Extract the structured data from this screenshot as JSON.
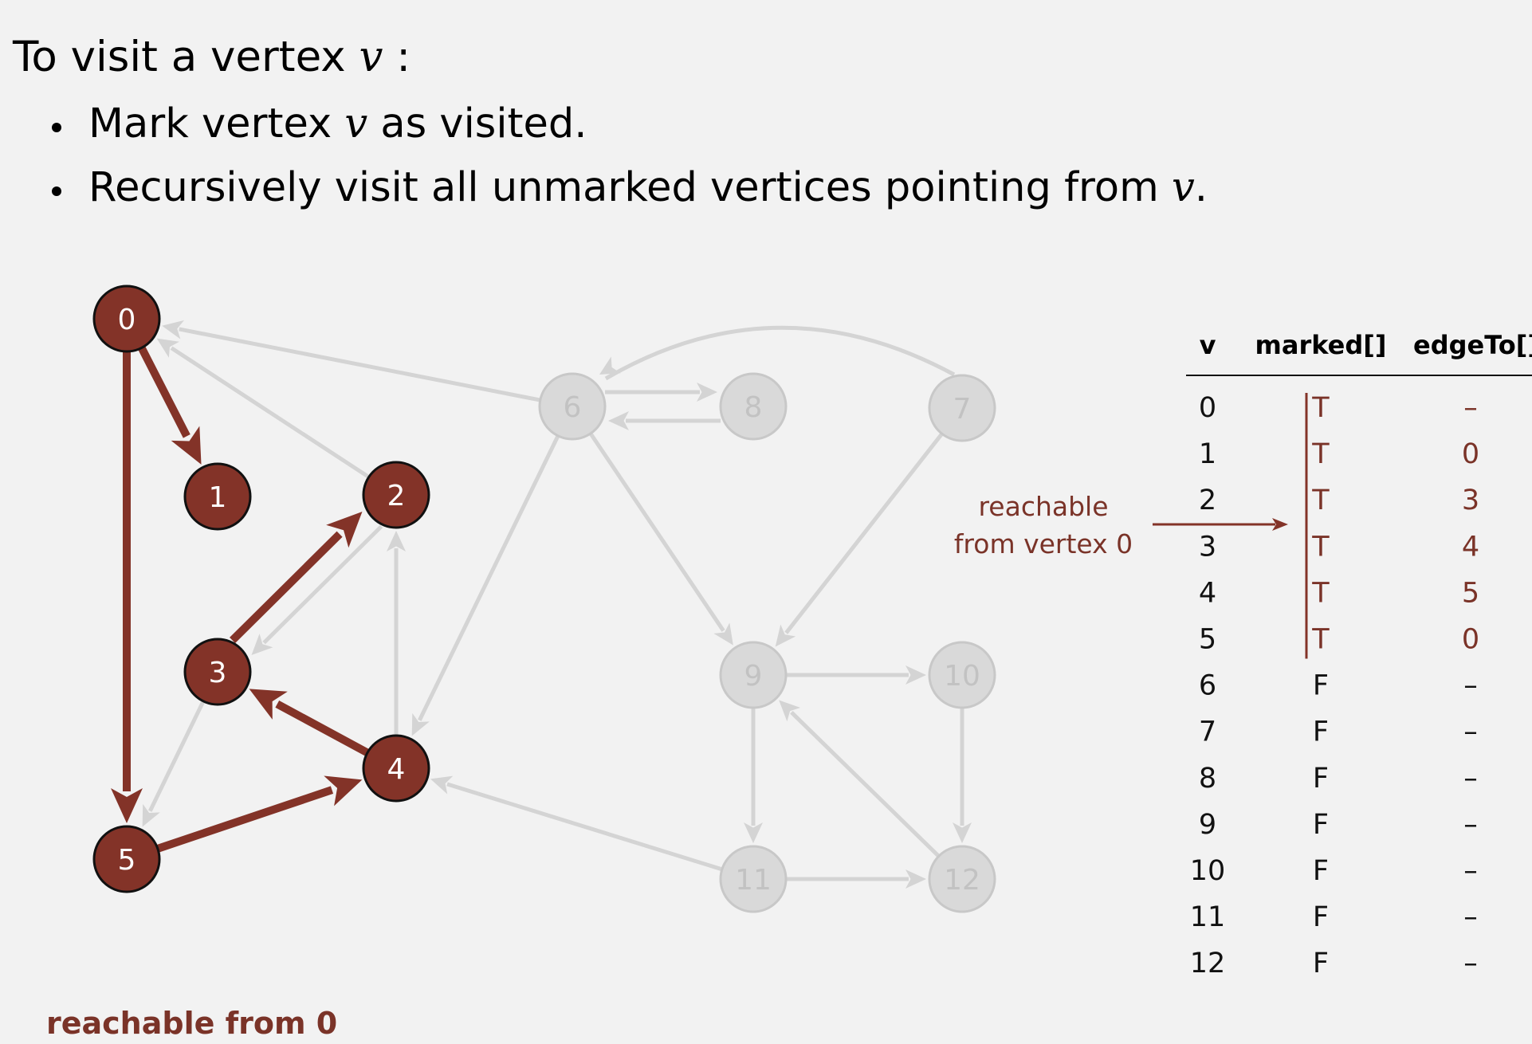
{
  "intro": {
    "prefix": "To visit a vertex ",
    "var": "v",
    "suffix": " :"
  },
  "bullets": [
    {
      "prefix": "Mark vertex ",
      "var": "v",
      "suffix": " as visited."
    },
    {
      "prefix": "Recursively visit all unmarked vertices pointing from ",
      "var": "v",
      "suffix": "."
    }
  ],
  "colors": {
    "marked": "#833328",
    "marked_text": "#7a3328",
    "unmarked_fill": "#d9d9d9",
    "unmarked_stroke": "#c8c8c8",
    "unmarked_edge": "#d4d4d4",
    "background": "#f2f2f2"
  },
  "graph": {
    "vertices": [
      {
        "id": "0",
        "marked": true
      },
      {
        "id": "1",
        "marked": true
      },
      {
        "id": "2",
        "marked": true
      },
      {
        "id": "3",
        "marked": true
      },
      {
        "id": "4",
        "marked": true
      },
      {
        "id": "5",
        "marked": true
      },
      {
        "id": "6",
        "marked": false
      },
      {
        "id": "7",
        "marked": false
      },
      {
        "id": "8",
        "marked": false
      },
      {
        "id": "9",
        "marked": false
      },
      {
        "id": "10",
        "marked": false
      },
      {
        "id": "11",
        "marked": false
      },
      {
        "id": "12",
        "marked": false
      }
    ],
    "edges": [
      {
        "from": "0",
        "to": "1",
        "tree": true
      },
      {
        "from": "0",
        "to": "5",
        "tree": true
      },
      {
        "from": "5",
        "to": "4",
        "tree": true
      },
      {
        "from": "4",
        "to": "3",
        "tree": true
      },
      {
        "from": "3",
        "to": "2",
        "tree": true
      },
      {
        "from": "2",
        "to": "0",
        "tree": false
      },
      {
        "from": "2",
        "to": "3",
        "tree": false
      },
      {
        "from": "3",
        "to": "5",
        "tree": false
      },
      {
        "from": "4",
        "to": "2",
        "tree": false
      },
      {
        "from": "6",
        "to": "0",
        "tree": false
      },
      {
        "from": "6",
        "to": "4",
        "tree": false
      },
      {
        "from": "6",
        "to": "8",
        "tree": false
      },
      {
        "from": "8",
        "to": "6",
        "tree": false
      },
      {
        "from": "6",
        "to": "9",
        "tree": false
      },
      {
        "from": "7",
        "to": "6",
        "tree": false
      },
      {
        "from": "7",
        "to": "9",
        "tree": false
      },
      {
        "from": "9",
        "to": "10",
        "tree": false
      },
      {
        "from": "9",
        "to": "11",
        "tree": false
      },
      {
        "from": "10",
        "to": "12",
        "tree": false
      },
      {
        "from": "11",
        "to": "4",
        "tree": false
      },
      {
        "from": "11",
        "to": "12",
        "tree": false
      },
      {
        "from": "12",
        "to": "9",
        "tree": false
      }
    ]
  },
  "table": {
    "headers": {
      "v": "v",
      "marked": "marked[]",
      "edgeTo": "edgeTo[]"
    },
    "rows": [
      {
        "v": "0",
        "marked": "T",
        "edgeTo": "–"
      },
      {
        "v": "1",
        "marked": "T",
        "edgeTo": "0"
      },
      {
        "v": "2",
        "marked": "T",
        "edgeTo": "3"
      },
      {
        "v": "3",
        "marked": "T",
        "edgeTo": "4"
      },
      {
        "v": "4",
        "marked": "T",
        "edgeTo": "5"
      },
      {
        "v": "5",
        "marked": "T",
        "edgeTo": "0"
      },
      {
        "v": "6",
        "marked": "F",
        "edgeTo": "–"
      },
      {
        "v": "7",
        "marked": "F",
        "edgeTo": "–"
      },
      {
        "v": "8",
        "marked": "F",
        "edgeTo": "–"
      },
      {
        "v": "9",
        "marked": "F",
        "edgeTo": "–"
      },
      {
        "v": "10",
        "marked": "F",
        "edgeTo": "–"
      },
      {
        "v": "11",
        "marked": "F",
        "edgeTo": "–"
      },
      {
        "v": "12",
        "marked": "F",
        "edgeTo": "–"
      }
    ]
  },
  "annotation": {
    "line1": "reachable",
    "line2": "from vertex 0"
  },
  "footer": "reachable from 0"
}
